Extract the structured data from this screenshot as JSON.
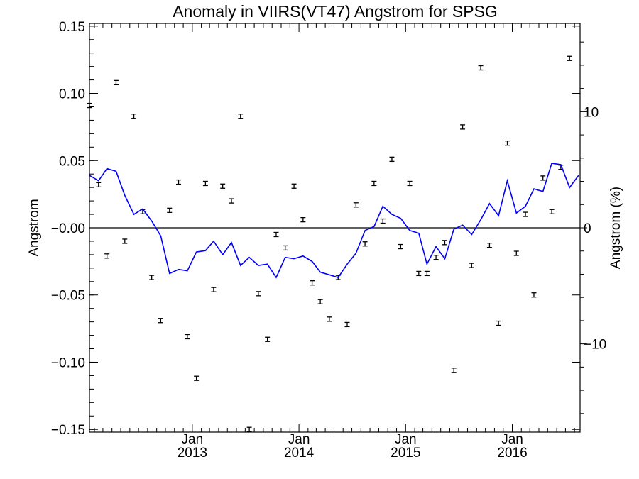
{
  "chart_data": {
    "type": "scatter",
    "title": "Anomaly in VIIRS(VT47) Angstrom for SPSG",
    "ylabel": "Angstrom",
    "y2label": "Angstrom (%)",
    "xlabel": "",
    "ylim": [
      -0.152,
      0.152
    ],
    "y2lim": [
      -17.6,
      17.6
    ],
    "yticks": [
      -0.15,
      -0.1,
      -0.05,
      0.0,
      0.05,
      0.1,
      0.15
    ],
    "ytick_labels": [
      "−0.15",
      "−0.10",
      "−0.05",
      "−0.00",
      "0.05",
      "0.10",
      "0.15"
    ],
    "y2ticks": [
      -10,
      0,
      10
    ],
    "y2tick_labels": [
      "−10",
      "0",
      "10"
    ],
    "xlim": [
      "2012-01-15",
      "2016-08-20"
    ],
    "xticks": [
      {
        "date": "2013-01-01",
        "month": "Jan",
        "year": "2013"
      },
      {
        "date": "2014-01-01",
        "month": "Jan",
        "year": "2014"
      },
      {
        "date": "2015-01-01",
        "month": "Jan",
        "year": "2015"
      },
      {
        "date": "2016-01-01",
        "month": "Jan",
        "year": "2016"
      }
    ],
    "zero_line": true,
    "grid": false,
    "series": [
      {
        "kind": "errorbar_points",
        "axis": "left",
        "color": "#000000",
        "points": [
          [
            "2012-01-15",
            0.091
          ],
          [
            "2012-02-15",
            0.032
          ],
          [
            "2012-03-15",
            -0.021
          ],
          [
            "2012-04-15",
            0.108
          ],
          [
            "2012-05-15",
            -0.01
          ],
          [
            "2012-06-15",
            0.083
          ],
          [
            "2012-07-15",
            0.012
          ],
          [
            "2012-08-15",
            -0.037
          ],
          [
            "2012-09-15",
            -0.069
          ],
          [
            "2012-10-15",
            0.013
          ],
          [
            "2012-11-15",
            0.034
          ],
          [
            "2012-12-15",
            -0.081
          ],
          [
            "2013-01-15",
            -0.112
          ],
          [
            "2013-02-15",
            0.033
          ],
          [
            "2013-03-15",
            -0.046
          ],
          [
            "2013-04-15",
            0.031
          ],
          [
            "2013-05-15",
            0.02
          ],
          [
            "2013-06-15",
            0.083
          ],
          [
            "2013-07-15",
            -0.15
          ],
          [
            "2013-08-15",
            -0.049
          ],
          [
            "2013-09-15",
            -0.083
          ],
          [
            "2013-10-15",
            -0.005
          ],
          [
            "2013-11-15",
            -0.015
          ],
          [
            "2013-12-15",
            0.031
          ],
          [
            "2014-01-15",
            0.006
          ],
          [
            "2014-02-15",
            -0.041
          ],
          [
            "2014-03-15",
            -0.055
          ],
          [
            "2014-04-15",
            -0.068
          ],
          [
            "2014-05-15",
            -0.037
          ],
          [
            "2014-06-15",
            -0.072
          ],
          [
            "2014-07-15",
            0.017
          ],
          [
            "2014-08-15",
            -0.012
          ],
          [
            "2014-09-15",
            0.033
          ],
          [
            "2014-10-15",
            0.005
          ],
          [
            "2014-11-15",
            0.051
          ],
          [
            "2014-12-15",
            -0.014
          ],
          [
            "2015-01-15",
            0.033
          ],
          [
            "2015-02-15",
            -0.034
          ],
          [
            "2015-03-15",
            -0.034
          ],
          [
            "2015-04-15",
            -0.022
          ],
          [
            "2015-05-15",
            -0.011
          ],
          [
            "2015-06-15",
            -0.106
          ],
          [
            "2015-07-15",
            0.075
          ],
          [
            "2015-08-15",
            -0.028
          ],
          [
            "2015-09-15",
            0.119
          ],
          [
            "2015-10-15",
            -0.013
          ],
          [
            "2015-11-15",
            -0.071
          ],
          [
            "2015-12-15",
            0.063
          ],
          [
            "2016-01-15",
            -0.019
          ],
          [
            "2016-02-15",
            0.01
          ],
          [
            "2016-03-15",
            -0.05
          ],
          [
            "2016-04-15",
            0.037
          ],
          [
            "2016-05-15",
            0.012
          ],
          [
            "2016-06-15",
            0.045
          ],
          [
            "2016-07-15",
            0.126
          ]
        ]
      },
      {
        "kind": "line",
        "axis": "left",
        "color": "#0000ff",
        "points": [
          [
            "2012-01-15",
            0.039
          ],
          [
            "2012-02-15",
            0.035
          ],
          [
            "2012-03-15",
            0.044
          ],
          [
            "2012-04-15",
            0.042
          ],
          [
            "2012-05-15",
            0.024
          ],
          [
            "2012-06-15",
            0.01
          ],
          [
            "2012-07-15",
            0.014
          ],
          [
            "2012-08-15",
            0.005
          ],
          [
            "2012-09-15",
            -0.006
          ],
          [
            "2012-10-15",
            -0.034
          ],
          [
            "2012-11-15",
            -0.031
          ],
          [
            "2012-12-15",
            -0.032
          ],
          [
            "2013-01-15",
            -0.018
          ],
          [
            "2013-02-15",
            -0.017
          ],
          [
            "2013-03-15",
            -0.01
          ],
          [
            "2013-04-15",
            -0.02
          ],
          [
            "2013-05-15",
            -0.011
          ],
          [
            "2013-06-15",
            -0.028
          ],
          [
            "2013-07-15",
            -0.022
          ],
          [
            "2013-08-15",
            -0.028
          ],
          [
            "2013-09-15",
            -0.027
          ],
          [
            "2013-10-15",
            -0.037
          ],
          [
            "2013-11-15",
            -0.022
          ],
          [
            "2013-12-15",
            -0.023
          ],
          [
            "2014-01-15",
            -0.021
          ],
          [
            "2014-02-15",
            -0.025
          ],
          [
            "2014-03-15",
            -0.033
          ],
          [
            "2014-04-15",
            -0.035
          ],
          [
            "2014-05-15",
            -0.037
          ],
          [
            "2014-06-15",
            -0.027
          ],
          [
            "2014-07-15",
            -0.019
          ],
          [
            "2014-08-15",
            -0.002
          ],
          [
            "2014-09-15",
            0.001
          ],
          [
            "2014-10-15",
            0.016
          ],
          [
            "2014-11-15",
            0.01
          ],
          [
            "2014-12-15",
            0.007
          ],
          [
            "2015-01-15",
            -0.002
          ],
          [
            "2015-02-15",
            -0.004
          ],
          [
            "2015-03-15",
            -0.027
          ],
          [
            "2015-04-15",
            -0.014
          ],
          [
            "2015-05-15",
            -0.023
          ],
          [
            "2015-06-15",
            -0.001
          ],
          [
            "2015-07-15",
            0.002
          ],
          [
            "2015-08-15",
            -0.005
          ],
          [
            "2015-09-15",
            0.006
          ],
          [
            "2015-10-15",
            0.018
          ],
          [
            "2015-11-15",
            0.009
          ],
          [
            "2015-12-15",
            0.035
          ],
          [
            "2016-01-15",
            0.011
          ],
          [
            "2016-02-15",
            0.016
          ],
          [
            "2016-03-15",
            0.029
          ],
          [
            "2016-04-15",
            0.027
          ],
          [
            "2016-05-15",
            0.048
          ],
          [
            "2016-06-15",
            0.047
          ],
          [
            "2016-07-15",
            0.03
          ],
          [
            "2016-08-15",
            0.039
          ]
        ]
      }
    ]
  }
}
